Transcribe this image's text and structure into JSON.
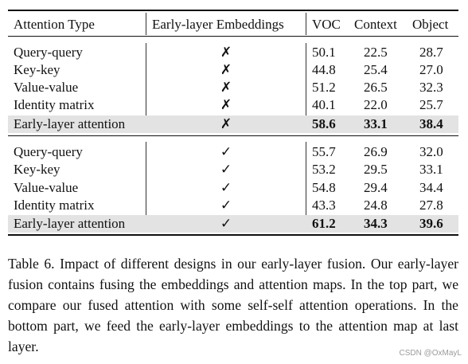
{
  "table": {
    "headers": [
      "Attention Type",
      "Early-layer Embeddings",
      "VOC",
      "Context",
      "Object"
    ],
    "top_block": [
      {
        "type": "Query-query",
        "emb": "✗",
        "voc": "50.1",
        "context": "22.5",
        "object": "28.7"
      },
      {
        "type": "Key-key",
        "emb": "✗",
        "voc": "44.8",
        "context": "25.4",
        "object": "27.0"
      },
      {
        "type": "Value-value",
        "emb": "✗",
        "voc": "51.2",
        "context": "26.5",
        "object": "32.3"
      },
      {
        "type": "Identity matrix",
        "emb": "✗",
        "voc": "40.1",
        "context": "22.0",
        "object": "25.7"
      },
      {
        "type": "Early-layer attention",
        "emb": "✗",
        "voc": "58.6",
        "context": "33.1",
        "object": "38.4",
        "highlight": true
      }
    ],
    "bottom_block": [
      {
        "type": "Query-query",
        "emb": "✓",
        "voc": "55.7",
        "context": "26.9",
        "object": "32.0"
      },
      {
        "type": "Key-key",
        "emb": "✓",
        "voc": "53.2",
        "context": "29.5",
        "object": "33.1"
      },
      {
        "type": "Value-value",
        "emb": "✓",
        "voc": "54.8",
        "context": "29.4",
        "object": "34.4"
      },
      {
        "type": "Identity matrix",
        "emb": "✓",
        "voc": "43.3",
        "context": "24.8",
        "object": "27.8"
      },
      {
        "type": "Early-layer attention",
        "emb": "✓",
        "voc": "61.2",
        "context": "34.3",
        "object": "39.6",
        "highlight": true
      }
    ]
  },
  "caption": "Table 6. Impact of different designs in our early-layer fusion. Our early-layer fusion contains fusing the embeddings and attention maps. In the top part, we compare our fused attention with some self-self attention operations. In the bottom part, we feed the early-layer embeddings to the attention map at last layer.",
  "watermark": "CSDN @OxMayL",
  "colors": {
    "highlight_row": "#e3e3e3",
    "rules": "#111111",
    "watermark": "#9a9a9a"
  }
}
